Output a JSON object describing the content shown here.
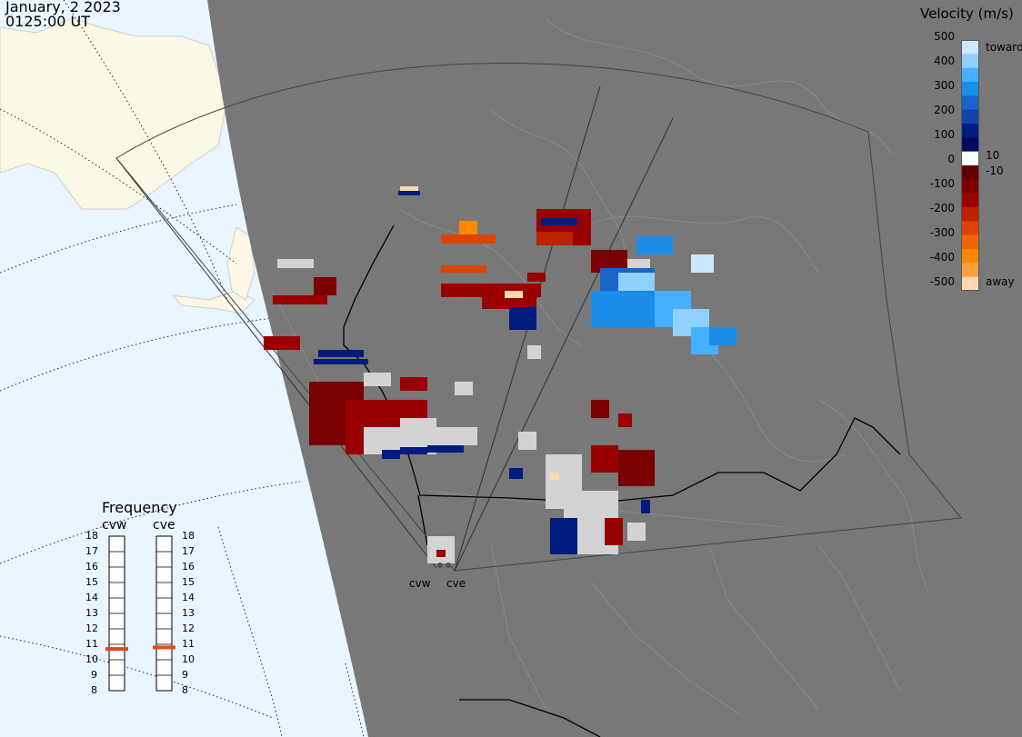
{
  "header": {
    "date": "January, 2 2023",
    "time": "0125:00 UT"
  },
  "colorbar": {
    "title": "Velocity (m/s)",
    "ticks": [
      "500",
      "400",
      "300",
      "200",
      "100",
      "0",
      "-100",
      "-200",
      "-300",
      "-400",
      "-500"
    ],
    "inner_ticks": [
      "10",
      "-10"
    ],
    "end_labels": {
      "top": "toward",
      "bottom": "away"
    },
    "colors": [
      "#cce8ff",
      "#8fd0ff",
      "#44b0ff",
      "#1a8de8",
      "#1a63c8",
      "#1245a8",
      "#001c80",
      "#000a60",
      "#ffffff",
      "#600000",
      "#7a0000",
      "#990000",
      "#bb2200",
      "#dd4400",
      "#ee6600",
      "#ff8800",
      "#ffa040",
      "#ffd8b0"
    ]
  },
  "frequency": {
    "title": "Frequency",
    "radars": [
      {
        "name": "cvw",
        "value_mhz": 10.7
      },
      {
        "name": "cve",
        "value_mhz": 10.8
      }
    ],
    "scale": [
      "18",
      "17",
      "16",
      "15",
      "14",
      "13",
      "12",
      "11",
      "10",
      "9",
      "8"
    ],
    "marker_color": "#e04a1a"
  },
  "sites": [
    "cvw",
    "cve"
  ],
  "colors": {
    "ocean": "#eaf6ff",
    "land_near": "#fbf8e6",
    "night": "#787878",
    "scatter_gray": "#d3d3d3"
  }
}
